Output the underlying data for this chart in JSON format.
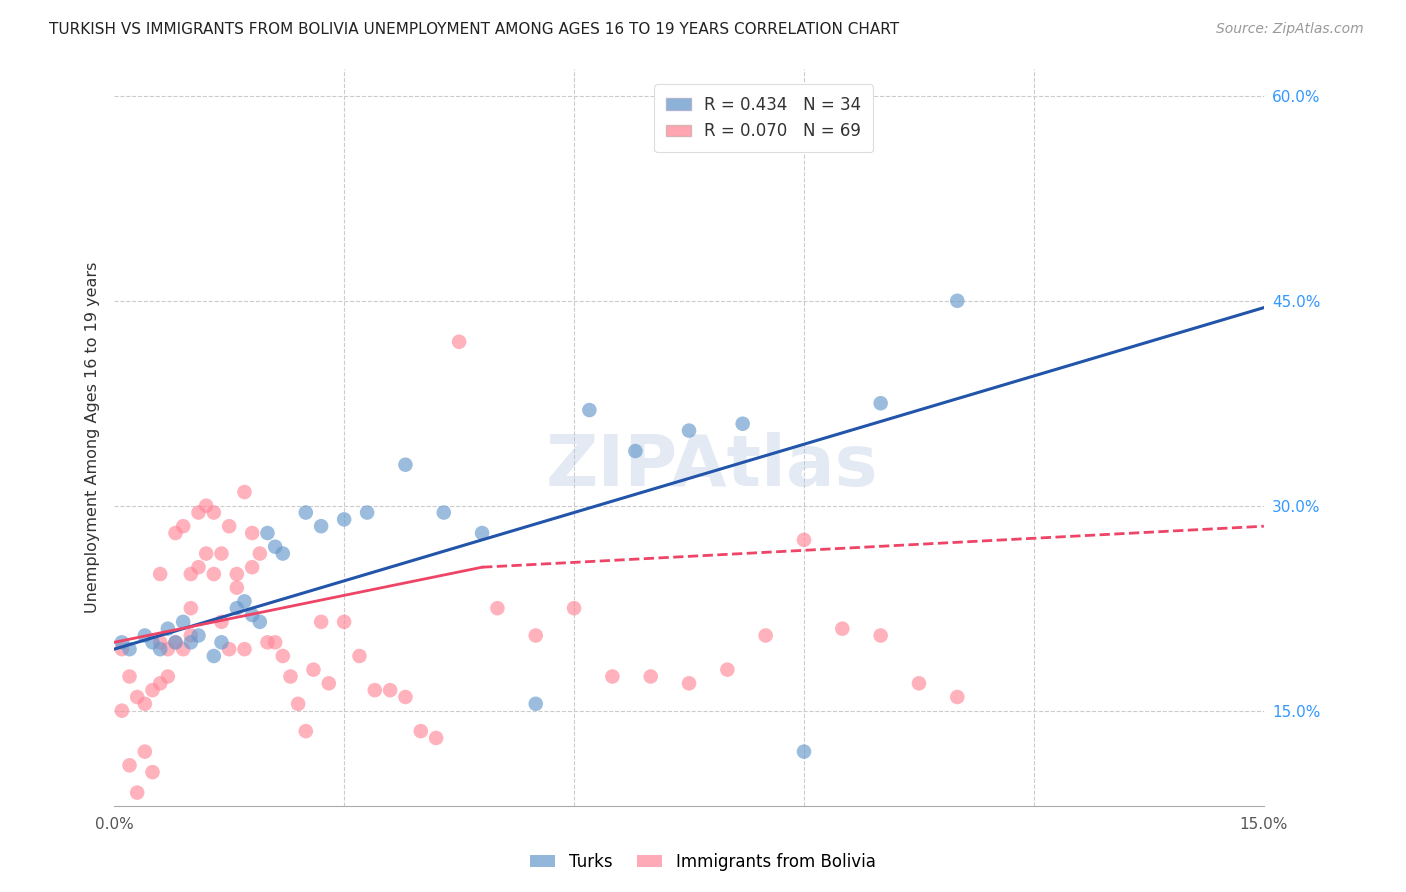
{
  "title": "TURKISH VS IMMIGRANTS FROM BOLIVIA UNEMPLOYMENT AMONG AGES 16 TO 19 YEARS CORRELATION CHART",
  "source": "Source: ZipAtlas.com",
  "ylabel": "Unemployment Among Ages 16 to 19 years",
  "xlim": [
    0.0,
    0.15
  ],
  "ylim": [
    0.08,
    0.62
  ],
  "yticks_right": [
    0.15,
    0.3,
    0.45,
    0.6
  ],
  "ytick_right_labels": [
    "15.0%",
    "30.0%",
    "45.0%",
    "60.0%"
  ],
  "legend_turks_r": "R = 0.434",
  "legend_turks_n": "N = 34",
  "legend_bolivia_r": "R = 0.070",
  "legend_bolivia_n": "N = 69",
  "turks_color": "#6699cc",
  "bolivia_color": "#ff8899",
  "turks_line_color": "#2255aa",
  "bolivia_line_color": "#ee4466",
  "watermark": "ZIPAtlas",
  "turks_x": [
    0.001,
    0.002,
    0.004,
    0.005,
    0.006,
    0.007,
    0.008,
    0.009,
    0.01,
    0.011,
    0.013,
    0.014,
    0.016,
    0.017,
    0.018,
    0.019,
    0.02,
    0.021,
    0.022,
    0.025,
    0.027,
    0.03,
    0.033,
    0.038,
    0.043,
    0.048,
    0.055,
    0.062,
    0.068,
    0.075,
    0.082,
    0.09,
    0.1,
    0.11
  ],
  "turks_y": [
    0.2,
    0.195,
    0.205,
    0.2,
    0.195,
    0.21,
    0.2,
    0.215,
    0.2,
    0.205,
    0.19,
    0.2,
    0.225,
    0.23,
    0.22,
    0.215,
    0.28,
    0.27,
    0.265,
    0.295,
    0.285,
    0.29,
    0.295,
    0.33,
    0.295,
    0.28,
    0.155,
    0.37,
    0.34,
    0.355,
    0.36,
    0.12,
    0.375,
    0.45
  ],
  "bolivia_x": [
    0.001,
    0.001,
    0.002,
    0.002,
    0.003,
    0.003,
    0.004,
    0.004,
    0.005,
    0.005,
    0.006,
    0.006,
    0.006,
    0.007,
    0.007,
    0.008,
    0.008,
    0.009,
    0.009,
    0.01,
    0.01,
    0.01,
    0.011,
    0.011,
    0.012,
    0.012,
    0.013,
    0.013,
    0.014,
    0.014,
    0.015,
    0.015,
    0.016,
    0.016,
    0.017,
    0.017,
    0.018,
    0.018,
    0.019,
    0.02,
    0.021,
    0.022,
    0.023,
    0.024,
    0.025,
    0.026,
    0.027,
    0.028,
    0.03,
    0.032,
    0.034,
    0.036,
    0.038,
    0.04,
    0.042,
    0.045,
    0.05,
    0.055,
    0.06,
    0.065,
    0.07,
    0.075,
    0.08,
    0.085,
    0.09,
    0.095,
    0.1,
    0.105,
    0.11
  ],
  "bolivia_y": [
    0.195,
    0.15,
    0.175,
    0.11,
    0.16,
    0.09,
    0.155,
    0.12,
    0.165,
    0.105,
    0.2,
    0.17,
    0.25,
    0.195,
    0.175,
    0.28,
    0.2,
    0.195,
    0.285,
    0.25,
    0.225,
    0.205,
    0.295,
    0.255,
    0.3,
    0.265,
    0.295,
    0.25,
    0.265,
    0.215,
    0.285,
    0.195,
    0.25,
    0.24,
    0.195,
    0.31,
    0.255,
    0.28,
    0.265,
    0.2,
    0.2,
    0.19,
    0.175,
    0.155,
    0.135,
    0.18,
    0.215,
    0.17,
    0.215,
    0.19,
    0.165,
    0.165,
    0.16,
    0.135,
    0.13,
    0.42,
    0.225,
    0.205,
    0.225,
    0.175,
    0.175,
    0.17,
    0.18,
    0.205,
    0.275,
    0.21,
    0.205,
    0.17,
    0.16
  ]
}
